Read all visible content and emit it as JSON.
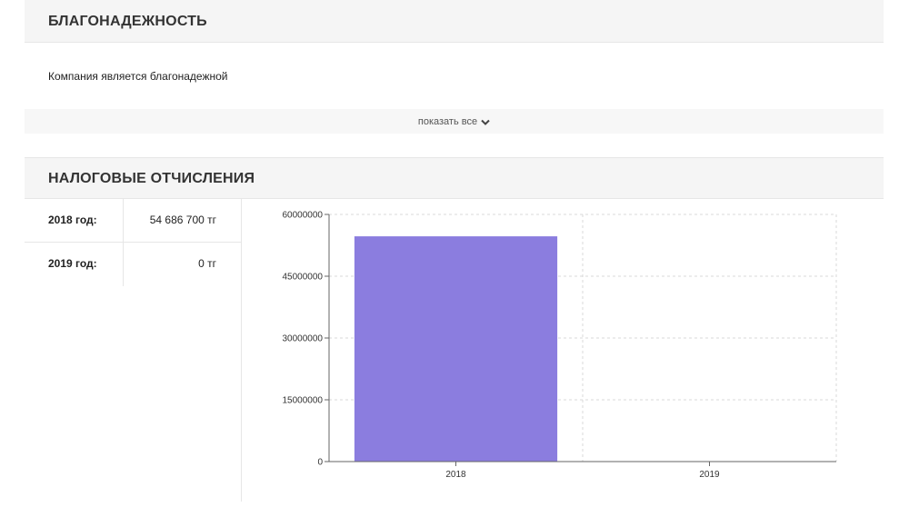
{
  "reliability": {
    "title": "БЛАГОНАДЕЖНОСТЬ",
    "text": "Компания является благонадежной",
    "show_all_label": "показать все",
    "show_all_icon": "chevron-down-icon"
  },
  "tax": {
    "title": "НАЛОГОВЫЕ ОТЧИСЛЕНИЯ",
    "rows": [
      {
        "year": "2018 год:",
        "amount": "54 686 700 тг"
      },
      {
        "year": "2019 год:",
        "amount": "0 тг"
      }
    ]
  },
  "chart_data": {
    "type": "bar",
    "categories": [
      "2018",
      "2019"
    ],
    "values": [
      54686700,
      0
    ],
    "ylim": [
      0,
      60000000
    ],
    "yticks": [
      "0",
      "15000000",
      "30000000",
      "45000000",
      "60000000"
    ],
    "grid": true,
    "bar_color": "#8b7ddf"
  }
}
